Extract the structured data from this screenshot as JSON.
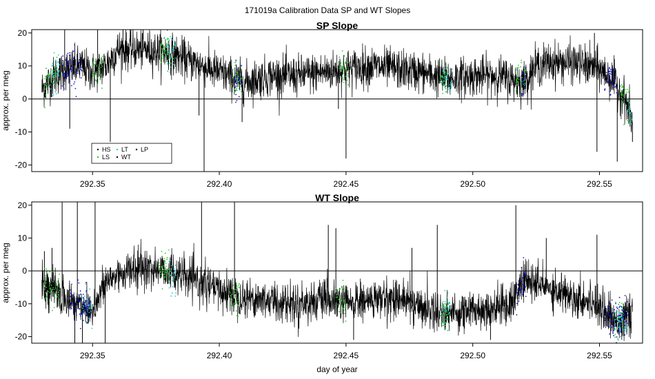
{
  "figure": {
    "title": "171019a   Calibration Data SP and WT Slopes"
  },
  "colors": {
    "series_HS": "#000000",
    "series_LS": "#22cc22",
    "series_LT": "#22cccc",
    "series_WT": "#000000",
    "series_LP": "#000000",
    "series_blue_points": "#1111cc",
    "trace": "#000000"
  },
  "chart_data": [
    {
      "type": "line",
      "title": "SP Slope",
      "xlabel": "",
      "ylabel": "approx. per meg",
      "xlim": [
        292.326,
        292.567
      ],
      "ylim": [
        -22,
        21
      ],
      "x_ticks": [
        292.35,
        292.4,
        292.45,
        292.5,
        292.55
      ],
      "x_tick_labels": [
        "292.35",
        "292.40",
        "292.45",
        "292.50",
        "292.55"
      ],
      "y_ticks": [
        -20,
        -10,
        0,
        10,
        20
      ],
      "y_tick_labels": [
        "-20",
        "-10",
        "0",
        "10",
        "20"
      ],
      "hline": 0,
      "grid": false,
      "legend": {
        "placement": "bottom-left",
        "entries": [
          {
            "label": "HS",
            "color": "#000000"
          },
          {
            "label": "LS",
            "color": "#22cc22"
          },
          {
            "label": "LT",
            "color": "#22cccc"
          },
          {
            "label": "WT",
            "color": "#000000"
          },
          {
            "label": "LP",
            "color": "#000000"
          }
        ]
      },
      "trace_profile": {
        "x": [
          292.33,
          292.335,
          292.34,
          292.345,
          292.35,
          292.355,
          292.36,
          292.37,
          292.38,
          292.39,
          292.4,
          292.41,
          292.42,
          292.43,
          292.44,
          292.45,
          292.46,
          292.47,
          292.48,
          292.49,
          292.5,
          292.51,
          292.52,
          292.525,
          292.53,
          292.54,
          292.55,
          292.555,
          292.56,
          292.563
        ],
        "y": [
          3,
          7,
          9,
          10,
          8,
          10,
          15,
          15,
          14,
          11,
          8,
          5,
          7,
          7,
          8,
          9,
          10,
          9,
          8,
          6,
          7,
          7,
          5,
          10,
          11,
          11,
          9,
          6,
          0,
          -7
        ],
        "noise": 3.0
      },
      "spikes": [
        {
          "x": 292.339,
          "y": 21
        },
        {
          "x": 292.341,
          "y": -9
        },
        {
          "x": 292.352,
          "y": 21
        },
        {
          "x": 292.357,
          "y": -13
        },
        {
          "x": 292.362,
          "y": 21
        },
        {
          "x": 292.392,
          "y": -5
        },
        {
          "x": 292.394,
          "y": -22
        },
        {
          "x": 292.409,
          "y": -7
        },
        {
          "x": 292.45,
          "y": -18
        },
        {
          "x": 292.447,
          "y": -3
        },
        {
          "x": 292.549,
          "y": -16
        },
        {
          "x": 292.557,
          "y": -19
        },
        {
          "x": 292.548,
          "y": 20
        },
        {
          "x": 292.563,
          "y": -13
        }
      ],
      "colored_points": {
        "LS": {
          "x_ranges": [
            [
              292.331,
              292.336
            ],
            [
              292.35,
              292.354
            ],
            [
              292.377,
              292.382
            ],
            [
              292.405,
              292.409
            ],
            [
              292.447,
              292.451
            ],
            [
              292.487,
              292.49
            ],
            [
              292.517,
              292.521
            ],
            [
              292.558,
              292.562
            ]
          ],
          "y_offset": 0
        },
        "LT": {
          "x_ranges": [
            [
              292.333,
              292.337
            ],
            [
              292.379,
              292.383
            ],
            [
              292.488,
              292.492
            ],
            [
              292.561,
              292.563
            ]
          ],
          "y_offset": 0
        },
        "HS": {
          "x_ranges": [
            [
              292.338,
              292.346
            ],
            [
              292.406,
              292.409
            ],
            [
              292.519,
              292.521
            ],
            [
              292.552,
              292.557
            ]
          ],
          "y_offset": 0
        }
      }
    },
    {
      "type": "line",
      "title": "WT Slope",
      "xlabel": "day of year",
      "ylabel": "approx. per meg",
      "xlim": [
        292.326,
        292.567
      ],
      "ylim": [
        -22,
        21
      ],
      "x_ticks": [
        292.35,
        292.4,
        292.45,
        292.5,
        292.55
      ],
      "x_tick_labels": [
        "292.35",
        "292.40",
        "292.45",
        "292.50",
        "292.55"
      ],
      "y_ticks": [
        -20,
        -10,
        0,
        10,
        20
      ],
      "y_tick_labels": [
        "-20",
        "-10",
        "0",
        "10",
        "20"
      ],
      "hline": 0,
      "grid": false,
      "trace_profile": {
        "x": [
          292.33,
          292.335,
          292.34,
          292.345,
          292.35,
          292.355,
          292.36,
          292.37,
          292.38,
          292.39,
          292.4,
          292.41,
          292.42,
          292.43,
          292.44,
          292.45,
          292.46,
          292.47,
          292.48,
          292.49,
          292.5,
          292.51,
          292.515,
          292.52,
          292.53,
          292.54,
          292.55,
          292.555,
          292.56,
          292.563
        ],
        "y": [
          -4,
          -6,
          -9,
          -10,
          -12,
          -4,
          -1,
          1,
          0,
          -3,
          -6,
          -8,
          -9,
          -10,
          -9,
          -10,
          -9,
          -8,
          -11,
          -13,
          -12,
          -11,
          -10,
          -3,
          -5,
          -8,
          -10,
          -15,
          -15,
          -12
        ],
        "noise": 3.0
      },
      "spikes": [
        {
          "x": 292.331,
          "y": 6
        },
        {
          "x": 292.334,
          "y": 7
        },
        {
          "x": 292.338,
          "y": 21
        },
        {
          "x": 292.343,
          "y": -22
        },
        {
          "x": 292.344,
          "y": 21
        },
        {
          "x": 292.346,
          "y": -22
        },
        {
          "x": 292.351,
          "y": 21
        },
        {
          "x": 292.355,
          "y": -22
        },
        {
          "x": 292.393,
          "y": 21
        },
        {
          "x": 292.406,
          "y": 21
        },
        {
          "x": 292.443,
          "y": 14
        },
        {
          "x": 292.446,
          "y": 13
        },
        {
          "x": 292.453,
          "y": -21
        },
        {
          "x": 292.476,
          "y": 7
        },
        {
          "x": 292.486,
          "y": 14
        },
        {
          "x": 292.507,
          "y": -21
        },
        {
          "x": 292.517,
          "y": 20
        },
        {
          "x": 292.529,
          "y": 10
        },
        {
          "x": 292.549,
          "y": 11
        }
      ],
      "colored_points": {
        "LS": {
          "x_ranges": [
            [
              292.331,
              292.337
            ],
            [
              292.376,
              292.381
            ],
            [
              292.404,
              292.408
            ],
            [
              292.446,
              292.45
            ],
            [
              292.487,
              292.491
            ],
            [
              292.556,
              292.56
            ]
          ],
          "y_offset": 0
        },
        "LT": {
          "x_ranges": [
            [
              292.346,
              292.35
            ],
            [
              292.38,
              292.383
            ],
            [
              292.488,
              292.491
            ],
            [
              292.556,
              292.561
            ]
          ],
          "y_offset": 0
        },
        "HS": {
          "x_ranges": [
            [
              292.341,
              292.349
            ],
            [
              292.517,
              292.521
            ],
            [
              292.552,
              292.561
            ]
          ],
          "y_offset": 0
        }
      }
    }
  ]
}
